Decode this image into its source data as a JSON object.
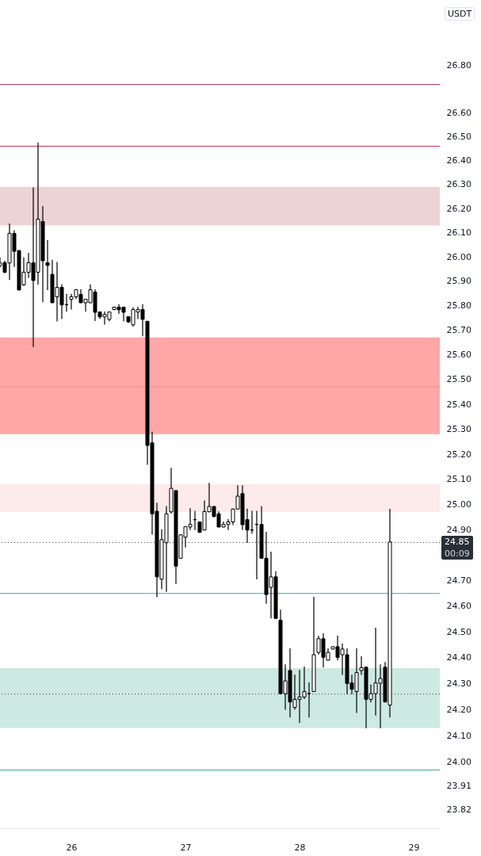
{
  "chart_data": {
    "type": "candlestick",
    "ylabel": "USDT",
    "color": "#000000",
    "log": true,
    "x": [
      25.375,
      25.4167,
      25.4583,
      25.5,
      25.5417,
      25.5833,
      25.625,
      25.6667,
      25.7083,
      25.75,
      25.7917,
      25.8333,
      25.875,
      25.9167,
      25.9583,
      26,
      26.0417,
      26.0833,
      26.125,
      26.1667,
      26.2083,
      26.25,
      26.2917,
      26.3333,
      26.375,
      26.4167,
      26.4583,
      26.5,
      26.5417,
      26.5833,
      26.625,
      26.6667,
      26.7083,
      26.75,
      26.7917,
      26.8333,
      26.875,
      26.9167,
      26.9583,
      27,
      27.0417,
      27.0833,
      27.125,
      27.1667,
      27.2083,
      27.25,
      27.2917,
      27.3333,
      27.375,
      27.4167,
      27.4583,
      27.5,
      27.5417,
      27.5833,
      27.625,
      27.6667,
      27.7083,
      27.75,
      27.7917,
      27.8333,
      27.875,
      27.9167,
      27.9583,
      28,
      28.0417,
      28.0833,
      28.125,
      28.1667,
      28.2083,
      28.25,
      28.2917,
      28.3333,
      28.375,
      28.4167,
      28.4583,
      28.5,
      28.5417,
      28.5833,
      28.625,
      28.6667,
      28.7083,
      28.75,
      28.7917
    ],
    "ohlc": [
      [
        25.964,
        25.996,
        25.958,
        25.975
      ],
      [
        25.976,
        25.982,
        25.935,
        25.937
      ],
      [
        25.975,
        26.136,
        25.907,
        26.097
      ],
      [
        26.097,
        26.108,
        25.961,
        26.023
      ],
      [
        26.026,
        26.026,
        25.864,
        25.864
      ],
      [
        25.885,
        25.996,
        25.883,
        25.937
      ],
      [
        25.937,
        26.015,
        25.915,
        25.976
      ],
      [
        25.976,
        26.286,
        25.634,
        25.903
      ],
      [
        25.937,
        26.474,
        25.888,
        26.156
      ],
      [
        26.146,
        26.208,
        25.816,
        25.984
      ],
      [
        25.976,
        26.067,
        25.866,
        25.965
      ],
      [
        25.928,
        25.986,
        25.812,
        25.812
      ],
      [
        25.836,
        25.977,
        25.738,
        25.875
      ],
      [
        25.875,
        25.885,
        25.747,
        25.803
      ],
      [
        25.804,
        25.846,
        25.777,
        25.804
      ],
      [
        25.826,
        25.846,
        25.786,
        25.836
      ],
      [
        25.836,
        25.865,
        25.829,
        25.865
      ],
      [
        25.846,
        25.865,
        25.812,
        25.812
      ],
      [
        25.812,
        25.826,
        25.777,
        25.826
      ],
      [
        25.812,
        25.885,
        25.812,
        25.865
      ],
      [
        25.856,
        25.865,
        25.739,
        25.773
      ],
      [
        25.774,
        25.774,
        25.747,
        25.754
      ],
      [
        25.754,
        25.774,
        25.725,
        25.764
      ],
      [
        25.744,
        25.774,
        25.738,
        25.774
      ],
      [
        25.784,
        25.794,
        25.784,
        25.794
      ],
      [
        25.794,
        25.804,
        25.768,
        25.783
      ],
      [
        25.794,
        25.794,
        25.738,
        25.773
      ],
      [
        25.755,
        25.755,
        25.731,
        25.734
      ],
      [
        25.722,
        25.791,
        25.716,
        25.784
      ],
      [
        25.774,
        25.794,
        25.747,
        25.784
      ],
      [
        25.784,
        25.804,
        25.677,
        25.744
      ],
      [
        25.736,
        25.736,
        25.159,
        25.235
      ],
      [
        25.245,
        25.288,
        24.883,
        24.963
      ],
      [
        24.973,
        25.005,
        24.637,
        24.715
      ],
      [
        24.706,
        24.9,
        24.668,
        24.861
      ],
      [
        24.849,
        24.992,
        24.658,
        24.963
      ],
      [
        24.971,
        25.144,
        24.966,
        25.064
      ],
      [
        25.055,
        25.055,
        24.689,
        24.757
      ],
      [
        24.788,
        24.88,
        24.788,
        24.88
      ],
      [
        24.871,
        24.912,
        24.832,
        24.912
      ],
      [
        24.911,
        24.983,
        24.901,
        24.921
      ],
      [
        24.94,
        24.973,
        24.901,
        24.94
      ],
      [
        24.931,
        24.931,
        24.89,
        24.89
      ],
      [
        24.899,
        25.014,
        24.899,
        24.972
      ],
      [
        24.971,
        25.084,
        24.971,
        24.992
      ],
      [
        24.992,
        24.992,
        24.952,
        24.952
      ],
      [
        24.963,
        24.971,
        24.911,
        24.911
      ],
      [
        24.911,
        24.931,
        24.911,
        24.921
      ],
      [
        24.921,
        24.94,
        24.901,
        24.931
      ],
      [
        24.931,
        24.982,
        24.92,
        24.982
      ],
      [
        24.982,
        25.074,
        24.982,
        25.033
      ],
      [
        25.043,
        25.074,
        24.901,
        24.92
      ],
      [
        24.94,
        24.982,
        24.85,
        24.899
      ],
      [
        24.899,
        24.973,
        24.887,
        24.899
      ],
      [
        24.921,
        24.973,
        24.707,
        24.921
      ],
      [
        24.921,
        24.992,
        24.788,
        24.788
      ],
      [
        24.788,
        24.89,
        24.612,
        24.646
      ],
      [
        24.674,
        24.812,
        24.555,
        24.715
      ],
      [
        24.715,
        24.735,
        24.553,
        24.553
      ],
      [
        24.546,
        24.585,
        24.262,
        24.262
      ],
      [
        24.262,
        24.373,
        24.202,
        24.311
      ],
      [
        24.351,
        24.435,
        24.172,
        24.23
      ],
      [
        24.209,
        24.333,
        24.202,
        24.24
      ],
      [
        24.24,
        24.351,
        24.151,
        24.249
      ],
      [
        24.249,
        24.364,
        24.243,
        24.27
      ],
      [
        24.262,
        24.303,
        24.172,
        24.262
      ],
      [
        24.27,
        24.635,
        24.27,
        24.412
      ],
      [
        24.421,
        24.484,
        24.414,
        24.474
      ],
      [
        24.474,
        24.493,
        24.364,
        24.402
      ],
      [
        24.391,
        24.435,
        24.391,
        24.421
      ],
      [
        24.434,
        24.443,
        24.434,
        24.443
      ],
      [
        24.443,
        24.484,
        24.392,
        24.402
      ],
      [
        24.412,
        24.453,
        24.336,
        24.434
      ],
      [
        24.412,
        24.435,
        24.262,
        24.301
      ],
      [
        24.303,
        24.333,
        24.262,
        24.279
      ],
      [
        24.27,
        24.435,
        24.19,
        24.343
      ],
      [
        24.351,
        24.404,
        24.336,
        24.362
      ],
      [
        24.364,
        24.364,
        24.131,
        24.24
      ],
      [
        24.24,
        24.295,
        24.23,
        24.262
      ],
      [
        24.262,
        24.515,
        24.18,
        24.303
      ],
      [
        24.302,
        24.373,
        24.131,
        24.32
      ],
      [
        24.364,
        24.382,
        24.23,
        24.23
      ],
      [
        24.218,
        24.981,
        24.172,
        24.852
      ]
    ],
    "xlim": [
      25.375,
      29.229
    ],
    "xticks": [
      26,
      27,
      28,
      29
    ],
    "ylim": [
      23.75,
      27.08
    ],
    "yticks": [
      {
        "value": 26.8,
        "label": "26.80"
      },
      {
        "value": 26.6,
        "label": "26.60"
      },
      {
        "value": 26.5,
        "label": "26.50"
      },
      {
        "value": 26.4,
        "label": "26.40"
      },
      {
        "value": 26.3,
        "label": "26.30"
      },
      {
        "value": 26.2,
        "label": "26.20"
      },
      {
        "value": 26.1,
        "label": "26.10"
      },
      {
        "value": 26,
        "label": "26.00"
      },
      {
        "value": 25.9,
        "label": "25.90"
      },
      {
        "value": 25.8,
        "label": "25.80"
      },
      {
        "value": 25.7,
        "label": "25.70"
      },
      {
        "value": 25.6,
        "label": "25.60"
      },
      {
        "value": 25.5,
        "label": "25.50"
      },
      {
        "value": 25.4,
        "label": "25.40"
      },
      {
        "value": 25.3,
        "label": "25.30"
      },
      {
        "value": 25.2,
        "label": "25.20"
      },
      {
        "value": 25.1,
        "label": "25.10"
      },
      {
        "value": 25,
        "label": "25.00"
      },
      {
        "value": 24.9,
        "label": "24.90"
      },
      {
        "value": 24.7,
        "label": "24.70"
      },
      {
        "value": 24.6,
        "label": "24.60"
      },
      {
        "value": 24.5,
        "label": "24.50"
      },
      {
        "value": 24.4,
        "label": "24.40"
      },
      {
        "value": 24.3,
        "label": "24.30"
      },
      {
        "value": 24.2,
        "label": "24.20"
      },
      {
        "value": 24.1,
        "label": "24.10"
      },
      {
        "value": 24,
        "label": "24.00"
      },
      23.91,
      23.82
    ],
    "bands": [
      {
        "axis": "y",
        "from": 26.13,
        "to": 26.29,
        "color": "#eed3d6"
      },
      {
        "axis": "y",
        "from": 25.28,
        "to": 25.67,
        "color": "#ffa6a6"
      },
      {
        "axis": "y",
        "from": 24.97,
        "to": 25.08,
        "color": "#fdeaea"
      },
      {
        "axis": "y",
        "from": 24.13,
        "to": 24.36,
        "color": "#cce9e2"
      }
    ],
    "ref_lines": [
      {
        "axis": "y",
        "value": 26.72,
        "color": "#a8324a",
        "line_style": "solid"
      },
      {
        "axis": "y",
        "value": 26.46,
        "color": "#c2334d",
        "line_style": "solid"
      },
      {
        "axis": "y",
        "value": 25.47,
        "color": "#ef8f98",
        "line_style": "solid"
      },
      {
        "axis": "y",
        "value": 24.65,
        "color": "#3fa58f",
        "line_style": "solid"
      },
      {
        "axis": "y",
        "value": 23.97,
        "color": "#3fa58f",
        "line_style": "solid"
      },
      {
        "axis": "y",
        "value": 24.85,
        "color": "#333333",
        "line_style": "dotted",
        "label": "24.85"
      },
      {
        "axis": "y",
        "value": 24.26,
        "color": "#333333",
        "line_style": "dotted"
      }
    ],
    "annotations": [
      "00:09"
    ]
  }
}
